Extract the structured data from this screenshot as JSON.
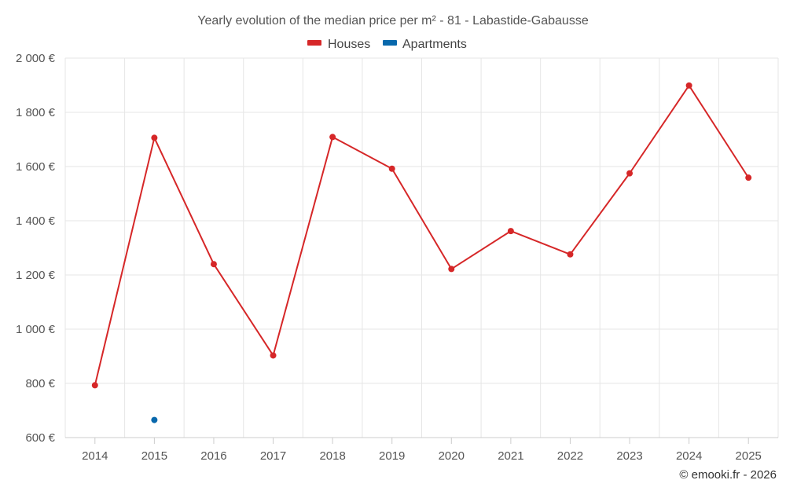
{
  "chart_data": {
    "type": "line",
    "title": "Yearly evolution of the median price per m² - 81 - Labastide-Gabausse",
    "categories": [
      "2014",
      "2015",
      "2016",
      "2017",
      "2018",
      "2019",
      "2020",
      "2021",
      "2022",
      "2023",
      "2024",
      "2025"
    ],
    "series": [
      {
        "name": "Houses",
        "color": "#d62728",
        "values": [
          793,
          1706,
          1240,
          903,
          1709,
          1592,
          1222,
          1362,
          1276,
          1575,
          1899,
          1559
        ]
      },
      {
        "name": "Apartments",
        "color": "#0868ac",
        "values": [
          null,
          665,
          null,
          null,
          null,
          null,
          null,
          null,
          null,
          null,
          null,
          null
        ]
      }
    ],
    "ylim": [
      600,
      2000
    ],
    "y_ticks": [
      600,
      800,
      1000,
      1200,
      1400,
      1600,
      1800,
      2000
    ],
    "y_tick_labels": [
      "600 €",
      "800 €",
      "1 000 €",
      "1 200 €",
      "1 400 €",
      "1 600 €",
      "1 800 €",
      "2 000 €"
    ],
    "grid": true,
    "legend_position": "top-center",
    "xlabel": "",
    "ylabel": ""
  },
  "credit": "© emooki.fr - 2026"
}
